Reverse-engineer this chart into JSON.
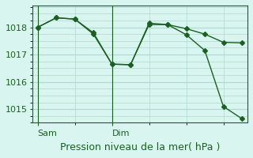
{
  "title": "Pression niveau de la mer( hPa )",
  "background_color": "#d8f5f0",
  "grid_color": "#b0d8d0",
  "line_color": "#1a6020",
  "marker_color": "#1a6020",
  "ylim": [
    1014.5,
    1018.8
  ],
  "yticks": [
    1015,
    1016,
    1017,
    1018
  ],
  "day_labels": [
    "Sam",
    "Dim"
  ],
  "day_positions": [
    0,
    4
  ],
  "series1_x": [
    0,
    1,
    2,
    3,
    4,
    5,
    6,
    7,
    8,
    9,
    10,
    11
  ],
  "series1_y": [
    1018.0,
    1018.35,
    1018.3,
    1017.8,
    1016.65,
    1016.63,
    1018.1,
    1018.1,
    1017.95,
    1017.75,
    1017.45,
    1017.43
  ],
  "series2_x": [
    0,
    1,
    2,
    3,
    4,
    5,
    6,
    7,
    8,
    9,
    10,
    11
  ],
  "series2_y": [
    1018.0,
    1018.35,
    1018.3,
    1017.75,
    1016.65,
    1016.63,
    1018.15,
    1018.1,
    1017.73,
    1017.15,
    1015.1,
    1014.65
  ],
  "xlabel_color": "#1a6020",
  "title_color": "#1a6020",
  "title_fontsize": 9,
  "tick_fontsize": 8
}
